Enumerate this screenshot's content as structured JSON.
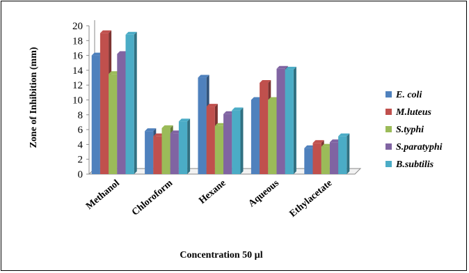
{
  "chart_data": {
    "type": "bar",
    "title": "",
    "xlabel": "Concentration 50 µl",
    "ylabel": "Zone of Inhibition  (mm)",
    "ylim": [
      0,
      20
    ],
    "yticks": [
      "0",
      "2",
      "4",
      "6",
      "8",
      "10",
      "12",
      "14",
      "16",
      "18",
      "20"
    ],
    "categories": [
      "Methanol",
      "Chloroform",
      "Hexane",
      "Aqueous",
      "Ethylacetate"
    ],
    "series": [
      {
        "name": "E. coli",
        "color": "#4f81bd",
        "values": [
          16,
          5.8,
          13,
          10,
          3.5
        ]
      },
      {
        "name": "M.luteus",
        "color": "#c0504d",
        "values": [
          19,
          5.1,
          9.1,
          12.3,
          4.2
        ]
      },
      {
        "name": "S.typhi",
        "color": "#9bbb59",
        "values": [
          13.5,
          6.2,
          6.5,
          10,
          3.7
        ]
      },
      {
        "name": "S.paratyphi",
        "color": "#8064a2",
        "values": [
          16.2,
          5.5,
          8.1,
          14.2,
          4.3
        ]
      },
      {
        "name": "B.subtilis",
        "color": "#4bacc6",
        "values": [
          18.8,
          7.1,
          8.6,
          14.1,
          5.1
        ]
      }
    ],
    "grid": false,
    "legend_position": "right"
  }
}
